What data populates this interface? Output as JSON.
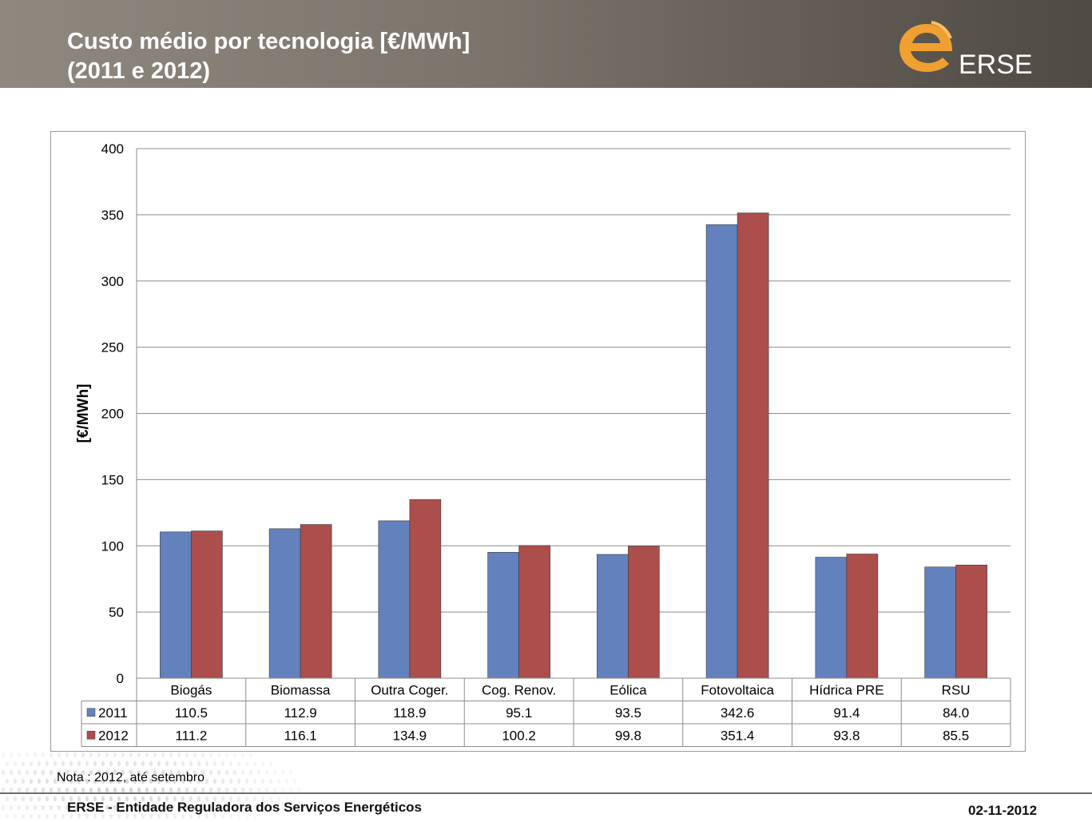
{
  "header": {
    "title_line1": "Custo médio por tecnologia [€/MWh]",
    "title_line2": "(2011 e 2012)",
    "logo_text": "ERSE"
  },
  "colors": {
    "series_2011": "#6381bd",
    "series_2012": "#ab4e4c",
    "logo_orange": "#f0a030"
  },
  "chart_data": {
    "type": "bar",
    "ylabel": "[€/MWh]",
    "ylim": [
      0,
      400
    ],
    "yticks": [
      "0",
      "50",
      "100",
      "150",
      "200",
      "250",
      "300",
      "350",
      "400"
    ],
    "grid": true,
    "categories": [
      "Biogás",
      "Biomassa",
      "Outra Coger.",
      "Cog. Renov.",
      "Eólica",
      "Fotovoltaica",
      "Hídrica PRE",
      "RSU"
    ],
    "series": [
      {
        "name": "2011",
        "values": [
          110.5,
          112.9,
          118.9,
          95.1,
          93.5,
          342.6,
          91.4,
          84.0
        ],
        "labels": [
          "110.5",
          "112.9",
          "118.9",
          "95.1",
          "93.5",
          "342.6",
          "91.4",
          "84.0"
        ]
      },
      {
        "name": "2012",
        "values": [
          111.2,
          116.1,
          134.9,
          100.2,
          99.8,
          351.4,
          93.8,
          85.5
        ],
        "labels": [
          "111.2",
          "116.1",
          "134.9",
          "100.2",
          "99.8",
          "351.4",
          "93.8",
          "85.5"
        ]
      }
    ]
  },
  "note": "Nota : 2012, até  setembro",
  "footer": {
    "organization": "ERSE - Entidade Reguladora dos Serviços Energéticos",
    "date": "02-11-2012"
  }
}
